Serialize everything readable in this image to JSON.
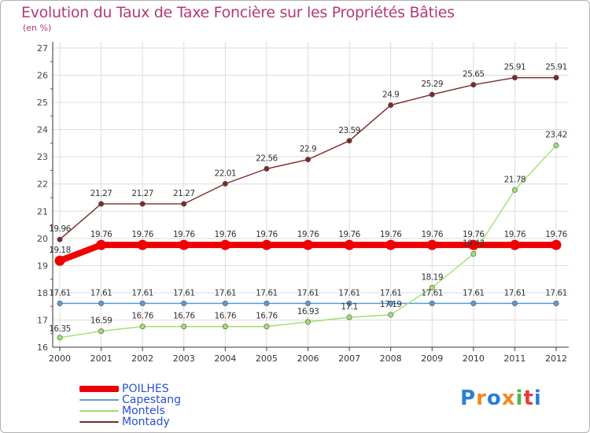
{
  "chart_data": {
    "type": "line",
    "title": "Evolution du Taux de Taxe Foncière sur les Propriétés Bâties",
    "subtitle": "(en %)",
    "x": [
      "2000",
      "2001",
      "2002",
      "2003",
      "2004",
      "2005",
      "2006",
      "2007",
      "2008",
      "2009",
      "2010",
      "2011",
      "2012"
    ],
    "ylim": [
      16,
      27
    ],
    "yticks": [
      "16",
      "17",
      "18",
      "19",
      "20",
      "21",
      "22",
      "23",
      "24",
      "25",
      "26",
      "27"
    ],
    "grid": true,
    "legend_position": "bottom-left",
    "series": [
      {
        "name": "POILHES",
        "color": "#ee0000",
        "values": [
          19.18,
          19.76,
          19.76,
          19.76,
          19.76,
          19.76,
          19.76,
          19.76,
          19.76,
          19.76,
          19.76,
          19.76,
          19.76
        ],
        "labels": [
          "19.18",
          "19.76",
          "19.76",
          "19.76",
          "19.76",
          "19.76",
          "19.76",
          "19.76",
          "19.76",
          "19.76",
          "19.76",
          "19.76",
          "19.76"
        ]
      },
      {
        "name": "Capestang",
        "color": "#5a9bd5",
        "values": [
          17.61,
          17.61,
          17.61,
          17.61,
          17.61,
          17.61,
          17.61,
          17.61,
          17.61,
          17.61,
          17.61,
          17.61,
          17.61
        ],
        "labels": [
          "17.61",
          "17.61",
          "17.61",
          "17.61",
          "17.61",
          "17.61",
          "17.61",
          "17.61",
          "17.61",
          "17.61",
          "17.61",
          "17.61",
          "17.61"
        ]
      },
      {
        "name": "Montels",
        "color": "#9ee070",
        "values": [
          16.35,
          16.59,
          16.76,
          16.76,
          16.76,
          16.76,
          16.93,
          17.1,
          17.19,
          18.19,
          19.43,
          21.78,
          23.42
        ],
        "labels": [
          "16.35",
          "16.59",
          "16.76",
          "16.76",
          "16.76",
          "16.76",
          "16.93",
          "17.1",
          "17.19",
          "18.19",
          "19.43",
          "21.78",
          "23.42"
        ]
      },
      {
        "name": "Montady",
        "color": "#7a2a2a",
        "values": [
          19.96,
          21.27,
          21.27,
          21.27,
          22.01,
          22.56,
          22.9,
          23.59,
          24.9,
          25.29,
          25.65,
          25.91,
          25.91
        ],
        "labels": [
          "19.96",
          "21.27",
          "21.27",
          "21.27",
          "22.01",
          "22.56",
          "22.9",
          "23.59",
          "24.9",
          "25.29",
          "25.65",
          "25.91",
          "25.91"
        ]
      }
    ]
  },
  "logo": {
    "letters": [
      "P",
      "r",
      "o",
      "x",
      "i",
      "t",
      "i"
    ],
    "colors": [
      "#2a7fd4",
      "#f08a1c",
      "#2a7fd4",
      "#f08a1c",
      "#4cb848",
      "#e23c3c",
      "#2a7fd4"
    ]
  }
}
